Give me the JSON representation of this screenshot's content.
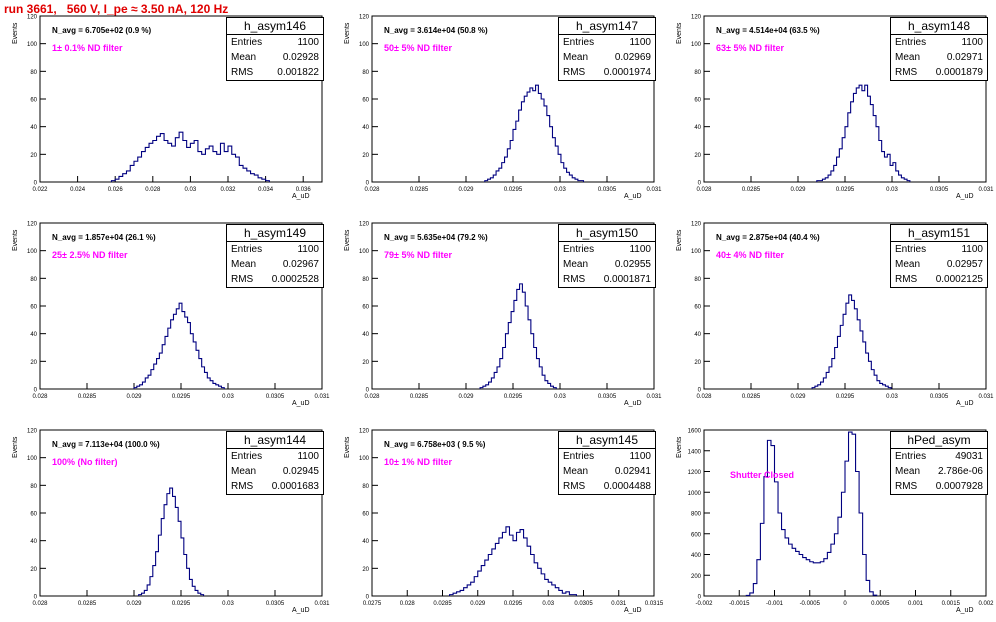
{
  "header": {
    "title": "run 3661,   560 V, I_pe ≈ 3.50 nA, 120 Hz"
  },
  "colors": {
    "title": "#e00000",
    "filter": "#ff00ff",
    "hist": "#000080"
  },
  "panels": [
    {
      "hist_name": "h_asym146",
      "navg": "N_avg = 6.705e+02 (0.9 %)",
      "filter": "1± 0.1% ND filter",
      "stats": {
        "entries": "1100",
        "mean": "0.02928",
        "rms": "0.001822"
      },
      "ylabel": "Events",
      "xlabel": "A_uD"
    },
    {
      "hist_name": "h_asym147",
      "navg": "N_avg = 3.614e+04 (50.8 %)",
      "filter": "50± 5% ND filter",
      "stats": {
        "entries": "1100",
        "mean": "0.02969",
        "rms": "0.0001974"
      },
      "ylabel": "Events",
      "xlabel": "A_uD"
    },
    {
      "hist_name": "h_asym148",
      "navg": "N_avg = 4.514e+04 (63.5 %)",
      "filter": "63± 5% ND filter",
      "stats": {
        "entries": "1100",
        "mean": "0.02971",
        "rms": "0.0001879"
      },
      "ylabel": "Events",
      "xlabel": "A_uD"
    },
    {
      "hist_name": "h_asym149",
      "navg": "N_avg = 1.857e+04 (26.1 %)",
      "filter": "25± 2.5% ND filter",
      "stats": {
        "entries": "1100",
        "mean": "0.02967",
        "rms": "0.0002528"
      },
      "ylabel": "Events",
      "xlabel": "A_uD"
    },
    {
      "hist_name": "h_asym150",
      "navg": "N_avg = 5.635e+04 (79.2 %)",
      "filter": "79± 5% ND filter",
      "stats": {
        "entries": "1100",
        "mean": "0.02955",
        "rms": "0.0001871"
      },
      "ylabel": "Events",
      "xlabel": "A_uD"
    },
    {
      "hist_name": "h_asym151",
      "navg": "N_avg = 2.875e+04 (40.4 %)",
      "filter": "40± 4% ND filter",
      "stats": {
        "entries": "1100",
        "mean": "0.02957",
        "rms": "0.0002125"
      },
      "ylabel": "Events",
      "xlabel": "A_uD"
    },
    {
      "hist_name": "h_asym144",
      "navg": "N_avg = 7.113e+04 (100.0 %)",
      "filter": "100% (No filter)",
      "stats": {
        "entries": "1100",
        "mean": "0.02945",
        "rms": "0.0001683"
      },
      "ylabel": "Events",
      "xlabel": "A_uD"
    },
    {
      "hist_name": "h_asym145",
      "navg": "N_avg = 6.758e+03 ( 9.5 %)",
      "filter": "10± 1% ND filter",
      "stats": {
        "entries": "1100",
        "mean": "0.02941",
        "rms": "0.0004488"
      },
      "ylabel": "Events",
      "xlabel": "A_uD"
    },
    {
      "hist_name": "hPed_asym",
      "navg": "",
      "filter": "Shutter Closed",
      "stats": {
        "entries": "49031",
        "mean": "2.786e-06",
        "rms": "0.0007928"
      },
      "ylabel": "Events",
      "xlabel": "A_uD"
    }
  ],
  "chart_data": [
    {
      "type": "bar",
      "name": "h_asym146",
      "xlim": [
        0.022,
        0.037
      ],
      "ylim": [
        0,
        120
      ],
      "xticks": [
        0.022,
        0.024,
        0.026,
        0.028,
        0.03,
        0.032,
        0.034,
        0.036
      ],
      "xtick_labels": [
        "0.022",
        "0.024",
        "0.026",
        "0.028",
        "0.03",
        "0.032",
        "0.034",
        "0.036"
      ],
      "yticks": [
        0,
        20,
        40,
        60,
        80,
        100,
        120
      ],
      "bin_start": 0.0258,
      "bin_width": 0.0002,
      "values": [
        1,
        2,
        4,
        6,
        8,
        12,
        15,
        18,
        22,
        25,
        28,
        30,
        33,
        35,
        30,
        28,
        26,
        32,
        36,
        30,
        25,
        28,
        30,
        22,
        20,
        24,
        26,
        22,
        20,
        28,
        22,
        26,
        20,
        18,
        12,
        10,
        8,
        6,
        5,
        3,
        2,
        1
      ]
    },
    {
      "type": "bar",
      "name": "h_asym147",
      "xlim": [
        0.028,
        0.031
      ],
      "ylim": [
        0,
        120
      ],
      "xticks": [
        0.028,
        0.0285,
        0.029,
        0.0295,
        0.03,
        0.0305,
        0.031
      ],
      "xtick_labels": [
        "0.028",
        "0.0285",
        "0.029",
        "0.0295",
        "0.03",
        "0.0305",
        "0.031"
      ],
      "yticks": [
        0,
        20,
        40,
        60,
        80,
        100,
        120
      ],
      "bin_start": 0.0292,
      "bin_width": 3e-05,
      "values": [
        1,
        2,
        3,
        5,
        8,
        10,
        14,
        18,
        24,
        30,
        38,
        44,
        52,
        58,
        62,
        65,
        68,
        66,
        70,
        64,
        60,
        55,
        48,
        40,
        32,
        26,
        20,
        14,
        10,
        7,
        5,
        3,
        2,
        1,
        1
      ]
    },
    {
      "type": "bar",
      "name": "h_asym148",
      "xlim": [
        0.028,
        0.031
      ],
      "ylim": [
        0,
        120
      ],
      "xticks": [
        0.028,
        0.0285,
        0.029,
        0.0295,
        0.03,
        0.0305,
        0.031
      ],
      "xtick_labels": [
        "0.028",
        "0.0285",
        "0.029",
        "0.0295",
        "0.03",
        "0.0305",
        "0.031"
      ],
      "yticks": [
        0,
        20,
        40,
        60,
        80,
        100,
        120
      ],
      "bin_start": 0.0292,
      "bin_width": 3e-05,
      "values": [
        1,
        1,
        2,
        3,
        5,
        8,
        12,
        18,
        24,
        32,
        40,
        50,
        58,
        64,
        68,
        70,
        66,
        70,
        62,
        56,
        48,
        40,
        30,
        22,
        18,
        20,
        12,
        14,
        8,
        5,
        3,
        2,
        1
      ]
    },
    {
      "type": "bar",
      "name": "h_asym149",
      "xlim": [
        0.028,
        0.031
      ],
      "ylim": [
        0,
        120
      ],
      "xticks": [
        0.028,
        0.0285,
        0.029,
        0.0295,
        0.03,
        0.0305,
        0.031
      ],
      "xtick_labels": [
        "0.028",
        "0.0285",
        "0.029",
        "0.0295",
        "0.03",
        "0.0305",
        "0.031"
      ],
      "yticks": [
        0,
        20,
        40,
        60,
        80,
        100,
        120
      ],
      "bin_start": 0.029,
      "bin_width": 3e-05,
      "values": [
        1,
        2,
        3,
        5,
        8,
        10,
        14,
        18,
        22,
        26,
        32,
        38,
        44,
        50,
        54,
        58,
        62,
        56,
        52,
        48,
        40,
        34,
        28,
        22,
        16,
        12,
        8,
        6,
        4,
        3,
        2,
        1
      ]
    },
    {
      "type": "bar",
      "name": "h_asym150",
      "xlim": [
        0.028,
        0.031
      ],
      "ylim": [
        0,
        120
      ],
      "xticks": [
        0.028,
        0.0285,
        0.029,
        0.0295,
        0.03,
        0.0305,
        0.031
      ],
      "xtick_labels": [
        "0.028",
        "0.0285",
        "0.029",
        "0.0295",
        "0.03",
        "0.0305",
        "0.031"
      ],
      "yticks": [
        0,
        20,
        40,
        60,
        80,
        100,
        120
      ],
      "bin_start": 0.02915,
      "bin_width": 3e-05,
      "values": [
        1,
        2,
        3,
        5,
        8,
        12,
        16,
        22,
        30,
        40,
        48,
        56,
        64,
        72,
        76,
        70,
        60,
        50,
        40,
        30,
        22,
        16,
        10,
        6,
        4,
        2,
        1
      ]
    },
    {
      "type": "bar",
      "name": "h_asym151",
      "xlim": [
        0.028,
        0.031
      ],
      "ylim": [
        0,
        120
      ],
      "xticks": [
        0.028,
        0.0285,
        0.029,
        0.0295,
        0.03,
        0.0305,
        0.031
      ],
      "xtick_labels": [
        "0.028",
        "0.0285",
        "0.029",
        "0.0295",
        "0.03",
        "0.0305",
        "0.031"
      ],
      "yticks": [
        0,
        20,
        40,
        60,
        80,
        100,
        120
      ],
      "bin_start": 0.02915,
      "bin_width": 3e-05,
      "values": [
        1,
        2,
        3,
        5,
        8,
        12,
        16,
        22,
        30,
        38,
        46,
        54,
        62,
        68,
        64,
        58,
        50,
        42,
        34,
        26,
        20,
        14,
        10,
        6,
        4,
        3,
        2,
        1
      ]
    },
    {
      "type": "bar",
      "name": "h_asym144",
      "xlim": [
        0.028,
        0.031
      ],
      "ylim": [
        0,
        120
      ],
      "xticks": [
        0.028,
        0.0285,
        0.029,
        0.0295,
        0.03,
        0.0305,
        0.031
      ],
      "xtick_labels": [
        "0.028",
        "0.0285",
        "0.029",
        "0.0295",
        "0.03",
        "0.0305",
        "0.031"
      ],
      "yticks": [
        0,
        20,
        40,
        60,
        80,
        100,
        120
      ],
      "bin_start": 0.02905,
      "bin_width": 3e-05,
      "values": [
        1,
        2,
        4,
        8,
        14,
        22,
        32,
        44,
        56,
        66,
        74,
        78,
        72,
        64,
        54,
        42,
        30,
        20,
        12,
        7,
        4,
        2,
        1
      ]
    },
    {
      "type": "bar",
      "name": "h_asym145",
      "xlim": [
        0.0275,
        0.0315
      ],
      "ylim": [
        0,
        120
      ],
      "xticks": [
        0.0275,
        0.028,
        0.0285,
        0.029,
        0.0295,
        0.03,
        0.0305,
        0.031,
        0.0315
      ],
      "xtick_labels": [
        "0.0275",
        "0.028",
        "0.0285",
        "0.029",
        "0.0295",
        "0.03",
        "0.0305",
        "0.031",
        "0.0315"
      ],
      "yticks": [
        0,
        20,
        40,
        60,
        80,
        100,
        120
      ],
      "bin_start": 0.0286,
      "bin_width": 5e-05,
      "values": [
        1,
        2,
        3,
        4,
        6,
        8,
        10,
        14,
        18,
        22,
        26,
        30,
        34,
        38,
        42,
        46,
        50,
        44,
        40,
        46,
        48,
        42,
        36,
        30,
        24,
        20,
        16,
        12,
        10,
        8,
        6,
        4,
        2,
        3,
        1,
        1
      ]
    },
    {
      "type": "bar",
      "name": "hPed_asym",
      "xlim": [
        -0.002,
        0.002
      ],
      "ylim": [
        0,
        1600
      ],
      "xticks": [
        -0.002,
        -0.0015,
        -0.001,
        -0.0005,
        0,
        0.0005,
        0.001,
        0.0015,
        0.002
      ],
      "xtick_labels": [
        "-0.002",
        "-0.0015",
        "-0.001",
        "-0.0005",
        "0",
        "0.0005",
        "0.001",
        "0.0015",
        "0.002"
      ],
      "yticks": [
        0,
        200,
        400,
        600,
        800,
        1000,
        1200,
        1400,
        1600
      ],
      "bin_start": -0.0014,
      "bin_width": 5e-05,
      "values": [
        5,
        30,
        120,
        350,
        700,
        1150,
        1500,
        1450,
        1100,
        800,
        640,
        560,
        500,
        460,
        430,
        400,
        370,
        350,
        330,
        320,
        320,
        330,
        360,
        420,
        500,
        600,
        760,
        1000,
        1300,
        1580,
        1560,
        1200,
        800,
        400,
        150,
        40,
        8
      ]
    }
  ]
}
